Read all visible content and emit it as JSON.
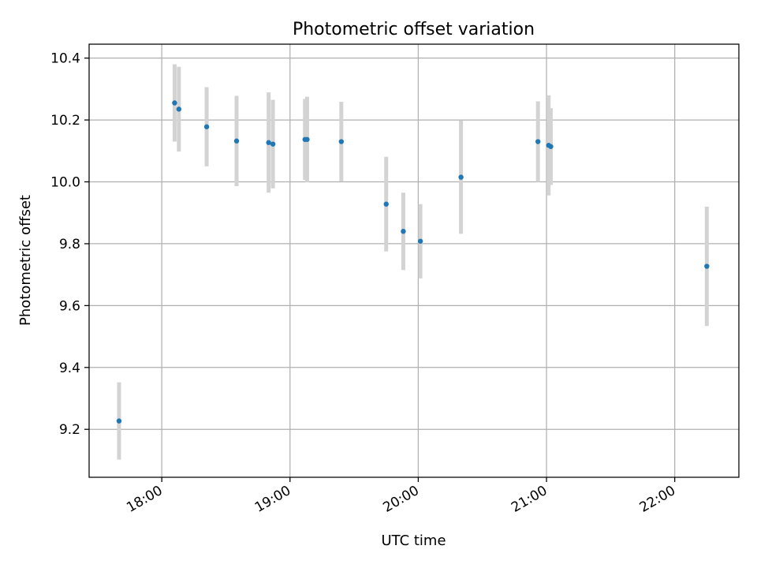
{
  "chart_data": {
    "type": "scatter",
    "title": "Photometric offset variation",
    "xlabel": "UTC time",
    "ylabel": "Photometric offset",
    "x_unit": "HH:MM UTC",
    "xlim": [
      "17:26",
      "22:30"
    ],
    "ylim": [
      9.045,
      10.445
    ],
    "xticks": [
      "18:00",
      "19:00",
      "20:00",
      "21:00",
      "22:00"
    ],
    "yticks": [
      9.2,
      9.4,
      9.6,
      9.8,
      10.0,
      10.2,
      10.4
    ],
    "grid": true,
    "colors": {
      "point": "#1f77b4",
      "errorbar": "#d3d3d3",
      "grid": "#b0b0b0"
    },
    "points": [
      {
        "x": "17:40",
        "y": 9.227,
        "err": 0.125
      },
      {
        "x": "18:06",
        "y": 10.255,
        "err": 0.125
      },
      {
        "x": "18:08",
        "y": 10.235,
        "err": 0.137
      },
      {
        "x": "18:21",
        "y": 10.178,
        "err": 0.128
      },
      {
        "x": "18:35",
        "y": 10.132,
        "err": 0.146
      },
      {
        "x": "18:50",
        "y": 10.127,
        "err": 0.162
      },
      {
        "x": "18:52",
        "y": 10.122,
        "err": 0.143
      },
      {
        "x": "19:07",
        "y": 10.137,
        "err": 0.131
      },
      {
        "x": "19:08",
        "y": 10.137,
        "err": 0.138
      },
      {
        "x": "19:24",
        "y": 10.13,
        "err": 0.129
      },
      {
        "x": "19:45",
        "y": 9.928,
        "err": 0.153
      },
      {
        "x": "19:53",
        "y": 9.84,
        "err": 0.125
      },
      {
        "x": "20:01",
        "y": 9.808,
        "err": 0.12
      },
      {
        "x": "20:20",
        "y": 10.015,
        "err": 0.183
      },
      {
        "x": "20:56",
        "y": 10.13,
        "err": 0.13
      },
      {
        "x": "21:01",
        "y": 10.118,
        "err": 0.162
      },
      {
        "x": "21:02",
        "y": 10.114,
        "err": 0.124
      },
      {
        "x": "22:15",
        "y": 9.727,
        "err": 0.193
      }
    ]
  }
}
